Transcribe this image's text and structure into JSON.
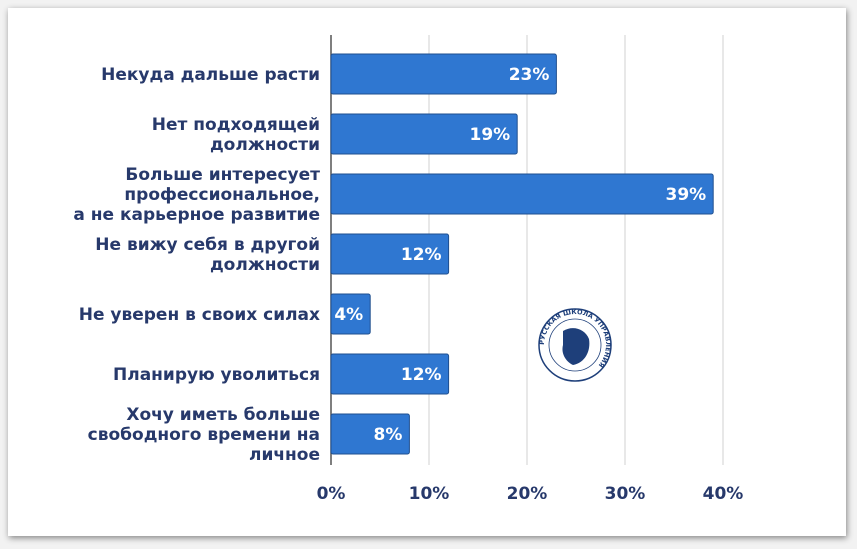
{
  "chart_data": {
    "type": "bar",
    "orientation": "horizontal",
    "categories": [
      [
        "Некуда дальше расти"
      ],
      [
        "Нет подходящей",
        "должности"
      ],
      [
        "Больше интересует",
        "профессиональное,",
        "а не карьерное развитие"
      ],
      [
        "Не вижу себя в другой",
        "должности"
      ],
      [
        "Не уверен в своих силах"
      ],
      [
        "Планирую уволиться"
      ],
      [
        "Хочу иметь больше",
        "свободного времени на",
        "личное"
      ]
    ],
    "values": [
      23,
      19,
      39,
      12,
      4,
      12,
      8
    ],
    "data_labels": [
      "23%",
      "19%",
      "39%",
      "12%",
      "4%",
      "12%",
      "8%"
    ],
    "xlim": [
      0,
      40
    ],
    "xticks": [
      0,
      10,
      20,
      30,
      40
    ],
    "xtick_labels": [
      "0%",
      "10%",
      "20%",
      "30%",
      "40%"
    ],
    "grid": "vertical",
    "bar_color": "#2f77d1",
    "bar_border": "#1f4f8f",
    "text_color": "#27396b"
  },
  "logo": {
    "text": "РУССКАЯ ШКОЛА УПРАВЛЕНИЯ",
    "color": "#1e3f7a"
  }
}
